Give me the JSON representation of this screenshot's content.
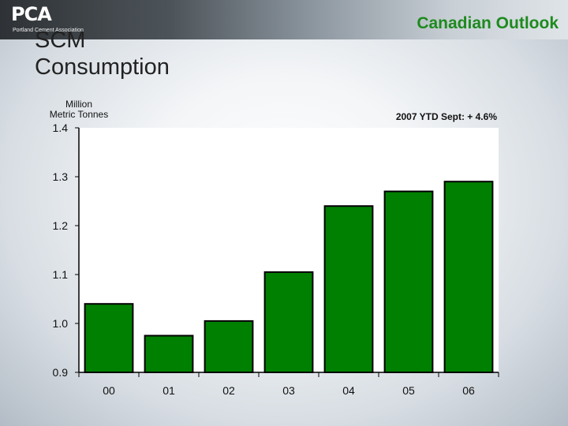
{
  "header": {
    "logo_text": "PCA",
    "logo_subtext": "Portland Cement Association",
    "title": "Canadian Outlook"
  },
  "slide": {
    "title_line1": "SCM",
    "title_line2": "Consumption"
  },
  "colors": {
    "bar_fill": "#008000",
    "bar_stroke": "#000000",
    "plot_bg": "#ffffff",
    "title_accent": "#1e8a1e"
  },
  "chart_data": {
    "type": "bar",
    "categories": [
      "00",
      "01",
      "02",
      "03",
      "04",
      "05",
      "06"
    ],
    "values": [
      1.04,
      0.975,
      1.005,
      1.105,
      1.24,
      1.27,
      1.29
    ],
    "title": "",
    "xlabel": "",
    "ylabel_line1": "Million",
    "ylabel_line2": "Metric Tonnes",
    "ylim": [
      0.9,
      1.4
    ],
    "yticks": [
      "0.9",
      "1.0",
      "1.1",
      "1.2",
      "1.3",
      "1.4"
    ],
    "annotation": "2007 YTD Sept: + 4.6%",
    "grid": false,
    "legend": "none"
  }
}
